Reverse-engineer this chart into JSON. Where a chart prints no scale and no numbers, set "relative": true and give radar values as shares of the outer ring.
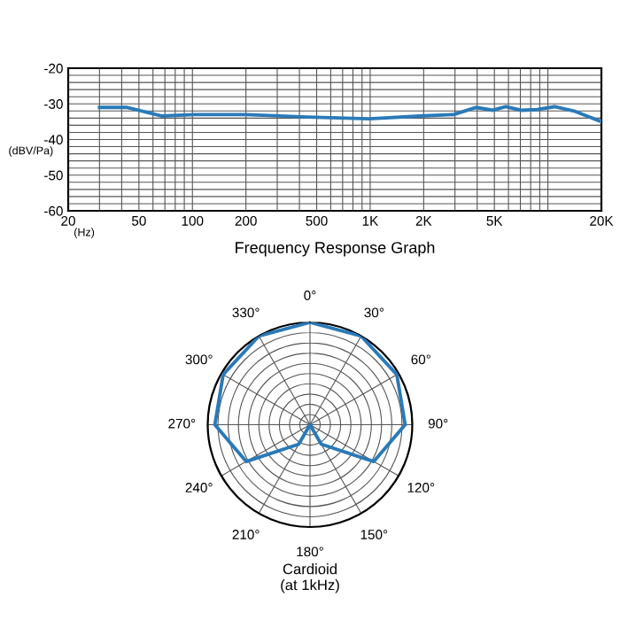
{
  "chart_data": [
    {
      "type": "line",
      "title": "Frequency Response Graph",
      "xlabel": "(Hz)",
      "ylabel": "(dBV/Pa)",
      "log": "x",
      "x": [
        30,
        43,
        67,
        103,
        200,
        443,
        987,
        1900,
        2944,
        3935,
        4900,
        5800,
        7050,
        8700,
        10900,
        14000,
        20000
      ],
      "series": [
        {
          "color": "#2a7ab8",
          "values": [
            -31,
            -31,
            -33.4,
            -33,
            -33,
            -33.7,
            -34.2,
            -33.4,
            -33,
            -31,
            -31.8,
            -30.8,
            -31.8,
            -31.6,
            -30.8,
            -32,
            -35
          ]
        }
      ],
      "xlim": [
        20,
        20000
      ],
      "xticks": [
        20,
        {
          "value": 30,
          "label": null
        },
        {
          "value": 40,
          "label": null
        },
        50,
        {
          "value": 60,
          "label": null
        },
        {
          "value": 70,
          "label": null
        },
        {
          "value": 80,
          "label": null
        },
        {
          "value": 90,
          "label": null
        },
        100,
        200,
        {
          "value": 300,
          "label": null
        },
        {
          "value": 400,
          "label": null
        },
        500,
        {
          "value": 600,
          "label": null
        },
        {
          "value": 700,
          "label": null
        },
        {
          "value": 800,
          "label": null
        },
        {
          "value": 900,
          "label": null
        },
        {
          "value": 1000,
          "label": "1K"
        },
        {
          "value": 2000,
          "label": "2K"
        },
        {
          "value": 3000,
          "label": null
        },
        {
          "value": 4000,
          "label": null
        },
        {
          "value": 5000,
          "label": "5K"
        },
        {
          "value": 6000,
          "label": null
        },
        {
          "value": 7000,
          "label": null
        },
        {
          "value": 8000,
          "label": null
        },
        {
          "value": 9000,
          "label": null
        },
        {
          "value": 10000,
          "label": null
        },
        {
          "value": 20000,
          "label": "20K"
        }
      ],
      "ylim": [
        -60,
        -20
      ],
      "yticks": [
        -60,
        {
          "value": -58,
          "label": null
        },
        {
          "value": -56,
          "label": null
        },
        {
          "value": -54,
          "label": null
        },
        {
          "value": -52,
          "label": null
        },
        -50,
        {
          "value": -48,
          "label": null
        },
        {
          "value": -46,
          "label": null
        },
        {
          "value": -44,
          "label": null
        },
        {
          "value": -42,
          "label": null
        },
        -40,
        {
          "value": -38,
          "label": null
        },
        {
          "value": -36,
          "label": null
        },
        {
          "value": -34,
          "label": null
        },
        {
          "value": -32,
          "label": null
        },
        -30,
        {
          "value": -28,
          "label": null
        },
        {
          "value": -26,
          "label": null
        },
        {
          "value": -24,
          "label": null
        },
        {
          "value": -22,
          "label": null
        },
        -20
      ],
      "grid": true
    },
    {
      "type": "radar",
      "title": "Cardioid\n(at 1kHz)",
      "relative": true,
      "grid": true,
      "categories": [
        "0°",
        "30°",
        "60°",
        "90°",
        "120°",
        "150°",
        "180°",
        "210°",
        "240°",
        "270°",
        "300°",
        "330°"
      ],
      "series": [
        {
          "color": "#2a7ab8",
          "values": [
            1,
            1,
            0.98,
            0.93,
            0.72,
            0.22,
            0,
            0.22,
            0.72,
            0.93,
            0.98,
            1
          ]
        }
      ]
    }
  ]
}
